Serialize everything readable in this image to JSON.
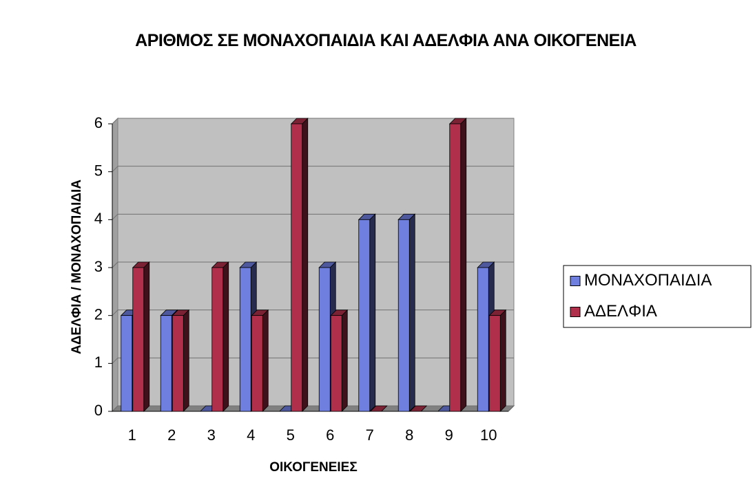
{
  "chart_data": {
    "type": "bar3d",
    "title": "ΑΡΙΘΜΟΣ ΣΕ ΜΟΝΑΧΟΠΑΙΔΙΑ ΚΑΙ ΑΔΕΛΦΙΑ ΑΝΑ ΟΙΚΟΓΕΝΕΙΑ",
    "x_label": "ΟΙΚΟΓΕΝΕΙΕΣ",
    "y_label": "ΑΔΕΛΦΙΑ / ΜΟΝΑΧΟΠΑΙΔΙΑ",
    "categories": [
      "1",
      "2",
      "3",
      "4",
      "5",
      "6",
      "7",
      "8",
      "9",
      "10"
    ],
    "series": [
      {
        "name": "ΜΟΝΑΧΟΠΑΙΔΙΑ",
        "color": "#6f7fe0",
        "values": [
          2,
          2,
          0,
          3,
          0,
          3,
          4,
          4,
          0,
          3
        ]
      },
      {
        "name": "ΑΔΕΛΦΙΑ",
        "color": "#b0304c",
        "values": [
          3,
          2,
          3,
          2,
          6,
          2,
          0,
          0,
          6,
          2
        ]
      }
    ],
    "ylim": [
      0,
      6
    ],
    "yticks": [
      0,
      1,
      2,
      3,
      4,
      5,
      6
    ],
    "grid": true,
    "legend": "right"
  }
}
